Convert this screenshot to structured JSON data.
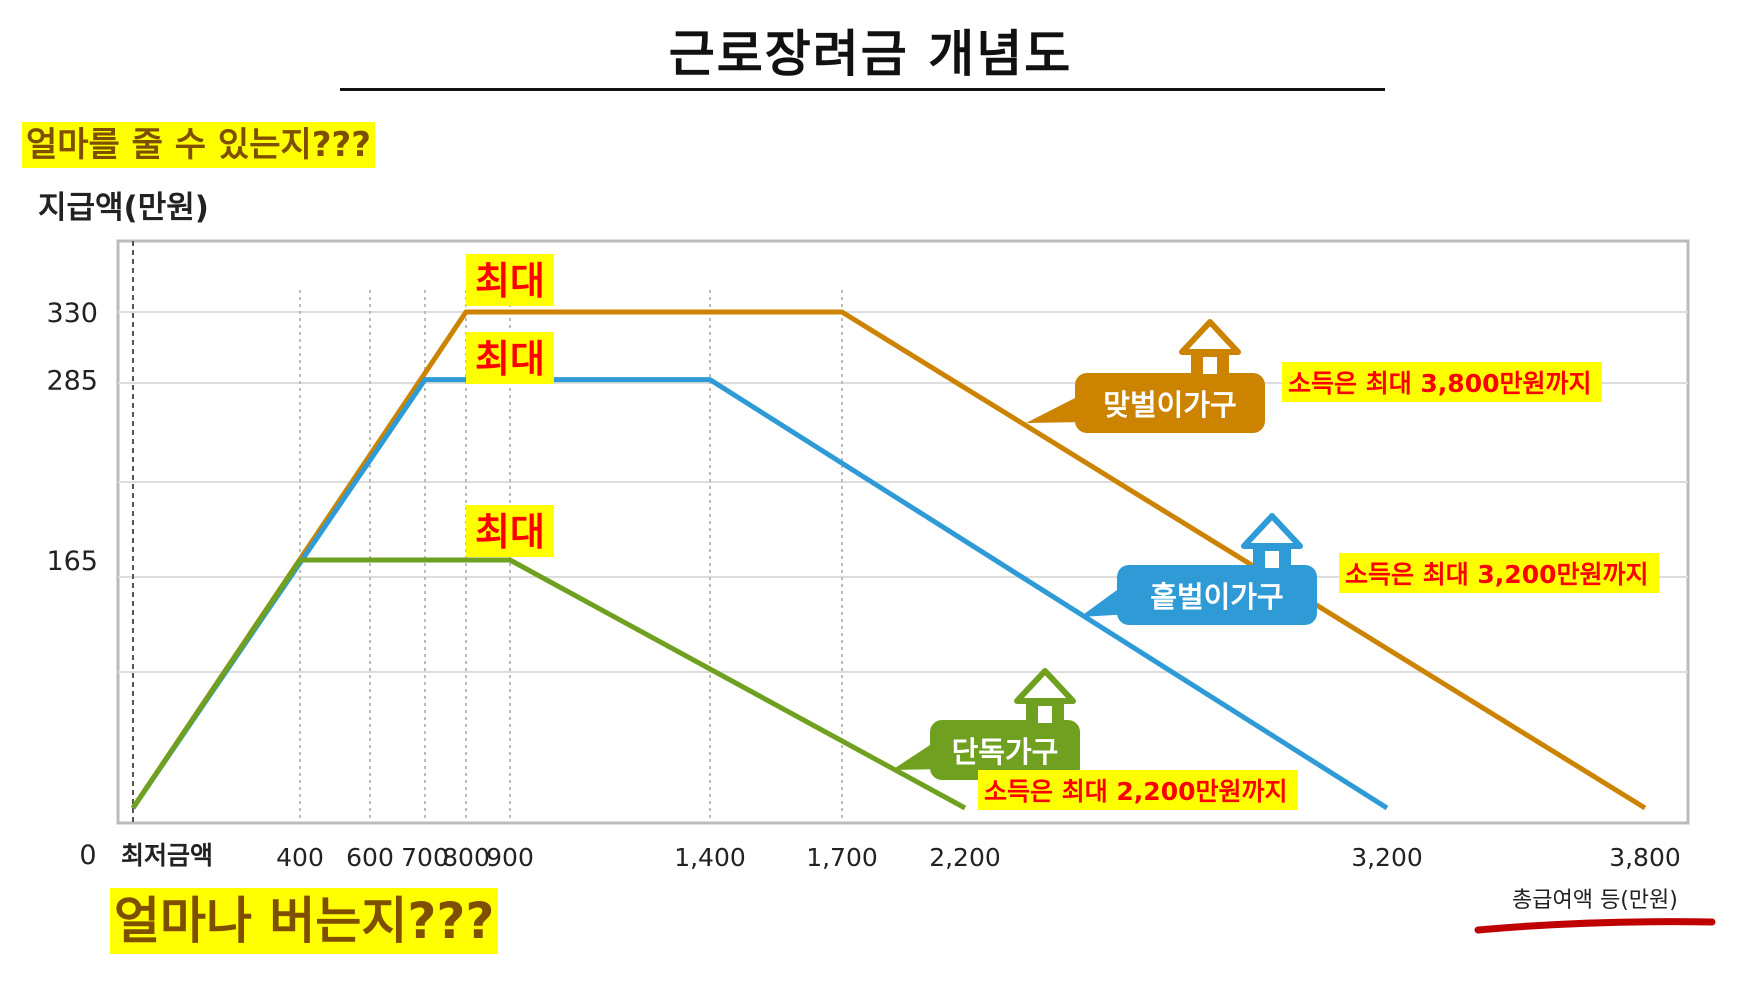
{
  "title": "근로장려금 개념도",
  "question_top": "얼마를 줄 수 있는지???",
  "question_bottom": "얼마나 버는지???",
  "colors": {
    "couple": "#CC8400",
    "single_earner": "#2E9BD6",
    "single": "#6FA01F",
    "highlight": "#FFFF00",
    "note_text": "#FF0000",
    "underline": "#C00000"
  },
  "chart_data": {
    "type": "line",
    "ylabel": "지급액(만원)",
    "xlabel": "총급여액 등(만원)",
    "xlim": [
      0,
      3850
    ],
    "ylim": [
      0,
      365
    ],
    "x_tick_values": [
      400,
      600,
      700,
      800,
      900,
      1400,
      1700,
      2200,
      3200,
      3800
    ],
    "x_tick_labels": [
      "400",
      "600",
      "700",
      "800",
      "900",
      "1,400",
      "1,700",
      "2,200",
      "3,200",
      "3,800"
    ],
    "x_origin_labels": [
      "0",
      "최저금액"
    ],
    "y_tick_values": [
      165,
      285,
      330
    ],
    "y_tick_labels": [
      "165",
      "285",
      "330"
    ],
    "series": [
      {
        "name": "맞벌이가구",
        "icon": "house-icon",
        "note": "소득은 최대 3,800만원까지",
        "peak_label": "최대",
        "color": "#CC8400",
        "x": [
          0,
          800,
          1700,
          3800
        ],
        "y": [
          0,
          330,
          330,
          0
        ]
      },
      {
        "name": "홑벌이가구",
        "icon": "house-icon",
        "note": "소득은 최대 3,200만원까지",
        "peak_label": "최대",
        "color": "#2E9BD6",
        "x": [
          0,
          700,
          1400,
          3200
        ],
        "y": [
          0,
          285,
          285,
          0
        ]
      },
      {
        "name": "단독가구",
        "icon": "house-icon",
        "note": "소득은 최대 2,200만원까지",
        "peak_label": "최대",
        "color": "#6FA01F",
        "x": [
          0,
          400,
          900,
          2200
        ],
        "y": [
          0,
          165,
          165,
          0
        ]
      }
    ]
  }
}
